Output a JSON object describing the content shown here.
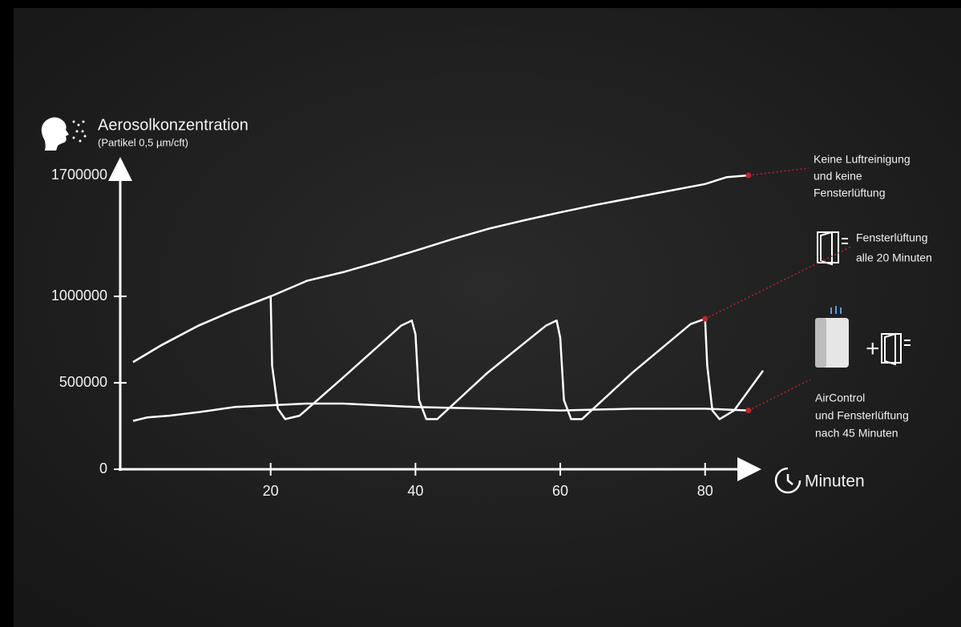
{
  "chart_data": {
    "type": "line",
    "ylabel": "Aerosolkonzentration",
    "ylabel_sub": "(Partikel 0,5 µm/cft)",
    "xlabel": "Minuten",
    "xlim": [
      0,
      88
    ],
    "ylim": [
      0,
      1700000
    ],
    "xticks": [
      20,
      40,
      60,
      80
    ],
    "yticks": [
      0,
      500000,
      1000000,
      1700000
    ],
    "series": [
      {
        "label": [
          "Keine Luftreinigung",
          "und keine",
          "Fensterlüftung"
        ],
        "color": "#ffffff",
        "x": [
          1,
          5,
          10,
          15,
          20,
          25,
          30,
          35,
          40,
          45,
          50,
          55,
          60,
          65,
          70,
          75,
          80,
          83,
          86
        ],
        "values": [
          620000,
          720000,
          830000,
          920000,
          1000000,
          1090000,
          1140000,
          1200000,
          1264000,
          1330000,
          1390000,
          1440000,
          1486000,
          1530000,
          1570000,
          1610000,
          1650000,
          1690000,
          1700000
        ]
      },
      {
        "label": [
          "Fensterlüftung",
          "alle 20 Minuten"
        ],
        "color": "#ffffff",
        "x": [
          1,
          5,
          10,
          15,
          20,
          20.2,
          21,
          22,
          24,
          30,
          38,
          39.5,
          40,
          40.5,
          41.5,
          43,
          50,
          58,
          59.5,
          60,
          60.5,
          61.5,
          63,
          70,
          78,
          80,
          80.3,
          81,
          82,
          84,
          88
        ],
        "values": [
          620000,
          720000,
          830000,
          920000,
          1000000,
          600000,
          350000,
          290000,
          310000,
          530000,
          830000,
          860000,
          780000,
          400000,
          290000,
          290000,
          560000,
          830000,
          860000,
          760000,
          400000,
          290000,
          290000,
          560000,
          840000,
          870000,
          600000,
          340000,
          290000,
          340000,
          570000
        ]
      },
      {
        "label": [
          "AirControl",
          "und Fensterlüftung",
          "nach 45 Minuten"
        ],
        "color": "#ffffff",
        "x": [
          1,
          3,
          6,
          10,
          15,
          20,
          25,
          30,
          35,
          40,
          50,
          60,
          70,
          80,
          86
        ],
        "values": [
          280000,
          300000,
          310000,
          330000,
          360000,
          370000,
          380000,
          380000,
          370000,
          360000,
          350000,
          340000,
          350000,
          350000,
          340000
        ]
      }
    ]
  }
}
